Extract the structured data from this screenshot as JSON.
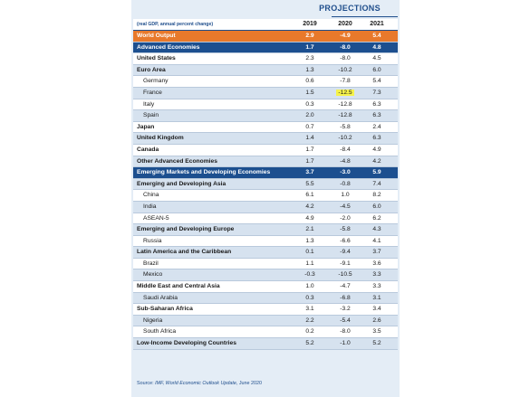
{
  "projections_label": "PROJECTIONS",
  "header": {
    "label": "(real GDP, annual percent change)",
    "col1": "2019",
    "col2": "2020",
    "col3": "2021"
  },
  "rows": [
    {
      "label": "World Output",
      "v2019": "2.9",
      "v2020": "-4.9",
      "v2021": "5.4",
      "style": "orange"
    },
    {
      "label": "Advanced Economies",
      "v2019": "1.7",
      "v2020": "-8.0",
      "v2021": "4.8",
      "style": "navy"
    },
    {
      "label": "United States",
      "v2019": "2.3",
      "v2020": "-8.0",
      "v2021": "4.5",
      "style": "bold"
    },
    {
      "label": "Euro Area",
      "v2019": "1.3",
      "v2020": "-10.2",
      "v2021": "6.0",
      "style": "bold"
    },
    {
      "label": "Germany",
      "v2019": "0.6",
      "v2020": "-7.8",
      "v2021": "5.4",
      "style": "sub"
    },
    {
      "label": "France",
      "v2019": "1.5",
      "v2020": "-12.5",
      "v2021": "7.3",
      "style": "sub",
      "highlight": true
    },
    {
      "label": "Italy",
      "v2019": "0.3",
      "v2020": "-12.8",
      "v2021": "6.3",
      "style": "sub"
    },
    {
      "label": "Spain",
      "v2019": "2.0",
      "v2020": "-12.8",
      "v2021": "6.3",
      "style": "sub"
    },
    {
      "label": "Japan",
      "v2019": "0.7",
      "v2020": "-5.8",
      "v2021": "2.4",
      "style": "bold"
    },
    {
      "label": "United Kingdom",
      "v2019": "1.4",
      "v2020": "-10.2",
      "v2021": "6.3",
      "style": "bold"
    },
    {
      "label": "Canada",
      "v2019": "1.7",
      "v2020": "-8.4",
      "v2021": "4.9",
      "style": "bold"
    },
    {
      "label": "Other Advanced Economies",
      "v2019": "1.7",
      "v2020": "-4.8",
      "v2021": "4.2",
      "style": "bold"
    },
    {
      "label": "Emerging Markets and Developing Economies",
      "v2019": "3.7",
      "v2020": "-3.0",
      "v2021": "5.9",
      "style": "navy"
    },
    {
      "label": "Emerging and Developing Asia",
      "v2019": "5.5",
      "v2020": "-0.8",
      "v2021": "7.4",
      "style": "bold"
    },
    {
      "label": "China",
      "v2019": "6.1",
      "v2020": "1.0",
      "v2021": "8.2",
      "style": "sub"
    },
    {
      "label": "India",
      "v2019": "4.2",
      "v2020": "-4.5",
      "v2021": "6.0",
      "style": "sub"
    },
    {
      "label": "ASEAN-5",
      "v2019": "4.9",
      "v2020": "-2.0",
      "v2021": "6.2",
      "style": "sub"
    },
    {
      "label": "Emerging and Developing Europe",
      "v2019": "2.1",
      "v2020": "-5.8",
      "v2021": "4.3",
      "style": "bold"
    },
    {
      "label": "Russia",
      "v2019": "1.3",
      "v2020": "-6.6",
      "v2021": "4.1",
      "style": "sub"
    },
    {
      "label": "Latin America and the Caribbean",
      "v2019": "0.1",
      "v2020": "-9.4",
      "v2021": "3.7",
      "style": "bold"
    },
    {
      "label": "Brazil",
      "v2019": "1.1",
      "v2020": "-9.1",
      "v2021": "3.6",
      "style": "sub"
    },
    {
      "label": "Mexico",
      "v2019": "-0.3",
      "v2020": "-10.5",
      "v2021": "3.3",
      "style": "sub"
    },
    {
      "label": "Middle East and Central Asia",
      "v2019": "1.0",
      "v2020": "-4.7",
      "v2021": "3.3",
      "style": "bold"
    },
    {
      "label": "Saudi Arabia",
      "v2019": "0.3",
      "v2020": "-6.8",
      "v2021": "3.1",
      "style": "sub"
    },
    {
      "label": "Sub-Saharan Africa",
      "v2019": "3.1",
      "v2020": "-3.2",
      "v2021": "3.4",
      "style": "bold"
    },
    {
      "label": "Nigeria",
      "v2019": "2.2",
      "v2020": "-5.4",
      "v2021": "2.6",
      "style": "sub"
    },
    {
      "label": "South Africa",
      "v2019": "0.2",
      "v2020": "-8.0",
      "v2021": "3.5",
      "style": "sub"
    },
    {
      "label": "Low-Income Developing Countries",
      "v2019": "5.2",
      "v2020": "-1.0",
      "v2021": "5.2",
      "style": "bold"
    }
  ],
  "source": {
    "prefix": "Source: ",
    "title": "IMF, World Economic Outlook Update",
    "suffix": ", June 2020"
  },
  "colors": {
    "orange": "#e8792b",
    "navy": "#1c4f8f",
    "highlight": "#f6f34a"
  }
}
